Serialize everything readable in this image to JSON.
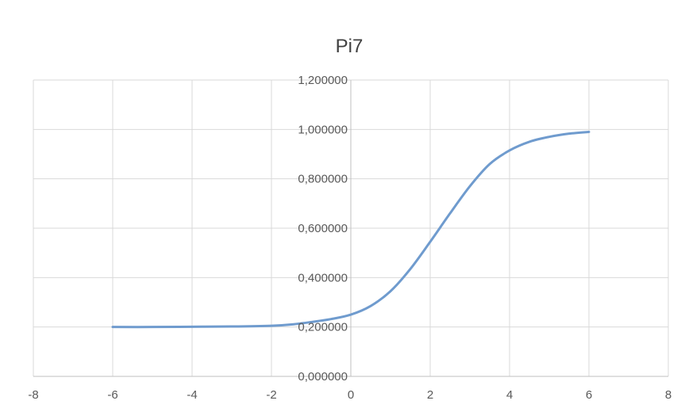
{
  "chart_data": {
    "type": "line",
    "title": "Pi7",
    "xlabel": "",
    "ylabel": "",
    "xlim": [
      -8,
      8
    ],
    "ylim": [
      0,
      1.2
    ],
    "xticks": [
      "-8",
      "-6",
      "-4",
      "-2",
      "0",
      "2",
      "4",
      "6",
      "8"
    ],
    "yticks": [
      "0,000000",
      "0,200000",
      "0,400000",
      "0,600000",
      "0,800000",
      "1,000000",
      "1,200000"
    ],
    "grid": true,
    "legend": "none",
    "series": [
      {
        "color": "#6f9bce",
        "x": [
          -6,
          -5,
          -4,
          -3,
          -2,
          -1.5,
          -1,
          -0.5,
          0,
          0.5,
          1,
          1.5,
          2,
          2.5,
          3,
          3.5,
          4,
          4.5,
          5,
          5.5,
          6
        ],
        "y": [
          0.2,
          0.2,
          0.201,
          0.202,
          0.205,
          0.21,
          0.22,
          0.232,
          0.25,
          0.285,
          0.345,
          0.435,
          0.545,
          0.66,
          0.77,
          0.86,
          0.915,
          0.95,
          0.97,
          0.983,
          0.99
        ]
      }
    ]
  }
}
